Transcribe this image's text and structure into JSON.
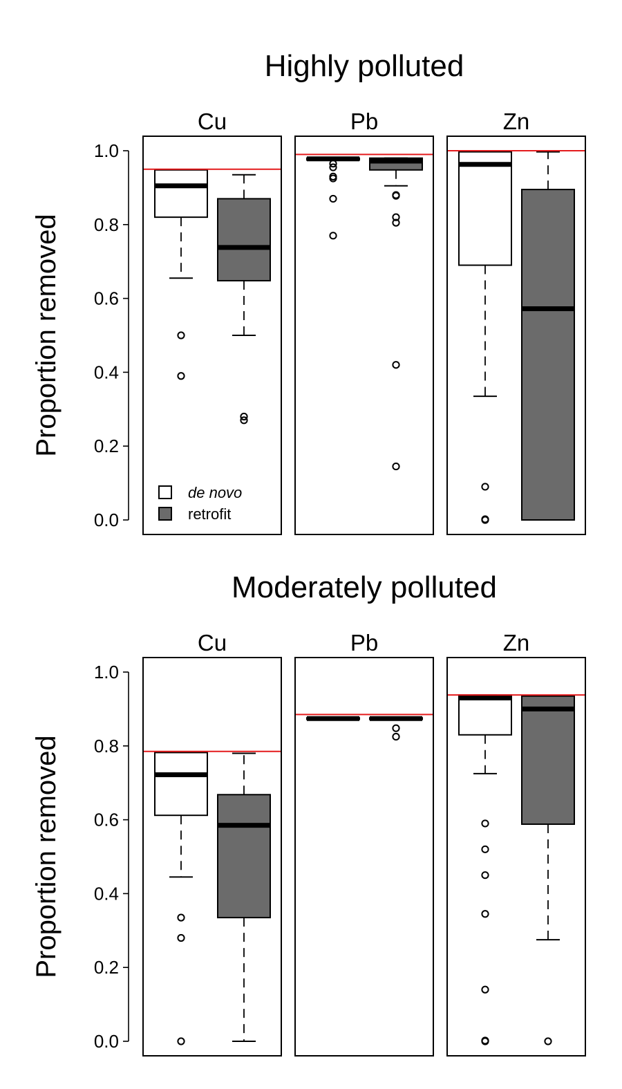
{
  "chart_data": [
    {
      "type": "boxplot",
      "title": "Highly polluted",
      "ylabel": "Proportion removed",
      "ylim": [
        0,
        1
      ],
      "yticks": [
        "0.0",
        "0.2",
        "0.4",
        "0.6",
        "0.8",
        "1.0"
      ],
      "series": [
        {
          "name": "de novo",
          "color": "#ffffff"
        },
        {
          "name": "retrofit",
          "color": "#6b6b6b"
        }
      ],
      "legend_position": "bottom-left",
      "legend": [
        {
          "label": "de novo",
          "italic": true
        },
        {
          "label": "retrofit",
          "italic": false
        }
      ],
      "panels": [
        {
          "label": "Cu",
          "reference_line": 0.95,
          "boxes": [
            {
              "series": "de novo",
              "whisker_low": 0.655,
              "q1": 0.82,
              "median": 0.905,
              "q3": 0.948,
              "whisker_high": 0.948,
              "outliers": [
                0.5,
                0.39
              ]
            },
            {
              "series": "retrofit",
              "whisker_low": 0.5,
              "q1": 0.648,
              "median": 0.738,
              "q3": 0.87,
              "whisker_high": 0.935,
              "outliers": [
                0.28,
                0.27
              ]
            }
          ]
        },
        {
          "label": "Pb",
          "reference_line": 0.99,
          "boxes": [
            {
              "series": "de novo",
              "whisker_low": 0.975,
              "q1": 0.975,
              "median": 0.978,
              "q3": 0.98,
              "whisker_high": 0.98,
              "outliers": [
                0.965,
                0.955,
                0.93,
                0.925,
                0.87,
                0.77
              ]
            },
            {
              "series": "retrofit",
              "whisker_low": 0.905,
              "q1": 0.948,
              "median": 0.972,
              "q3": 0.98,
              "whisker_high": 0.98,
              "outliers": [
                0.88,
                0.878,
                0.82,
                0.805,
                0.42,
                0.145
              ]
            }
          ]
        },
        {
          "label": "Zn",
          "reference_line": 1.0,
          "boxes": [
            {
              "series": "de novo",
              "whisker_low": 0.335,
              "q1": 0.69,
              "median": 0.963,
              "q3": 0.997,
              "whisker_high": 0.997,
              "outliers": [
                0.09,
                0.002,
                0.0
              ]
            },
            {
              "series": "retrofit",
              "whisker_low": 0.0,
              "q1": 0.0,
              "median": 0.572,
              "q3": 0.895,
              "whisker_high": 0.997,
              "outliers": []
            }
          ]
        }
      ]
    },
    {
      "type": "boxplot",
      "title": "Moderately polluted",
      "ylabel": "Proportion removed",
      "ylim": [
        0,
        1
      ],
      "yticks": [
        "0.0",
        "0.2",
        "0.4",
        "0.6",
        "0.8",
        "1.0"
      ],
      "series": [
        {
          "name": "de novo",
          "color": "#ffffff"
        },
        {
          "name": "retrofit",
          "color": "#6b6b6b"
        }
      ],
      "panels": [
        {
          "label": "Cu",
          "reference_line": 0.785,
          "boxes": [
            {
              "series": "de novo",
              "whisker_low": 0.445,
              "q1": 0.612,
              "median": 0.722,
              "q3": 0.782,
              "whisker_high": 0.782,
              "outliers": [
                0.335,
                0.28,
                0.0
              ]
            },
            {
              "series": "retrofit",
              "whisker_low": 0.0,
              "q1": 0.335,
              "median": 0.585,
              "q3": 0.668,
              "whisker_high": 0.78,
              "outliers": []
            }
          ]
        },
        {
          "label": "Pb",
          "reference_line": 0.885,
          "boxes": [
            {
              "series": "de novo",
              "whisker_low": 0.872,
              "q1": 0.872,
              "median": 0.874,
              "q3": 0.876,
              "whisker_high": 0.876,
              "outliers": []
            },
            {
              "series": "retrofit",
              "whisker_low": 0.872,
              "q1": 0.872,
              "median": 0.874,
              "q3": 0.876,
              "whisker_high": 0.876,
              "outliers": [
                0.848,
                0.825
              ]
            }
          ]
        },
        {
          "label": "Zn",
          "reference_line": 0.938,
          "boxes": [
            {
              "series": "de novo",
              "whisker_low": 0.725,
              "q1": 0.83,
              "median": 0.93,
              "q3": 0.938,
              "whisker_high": 0.938,
              "outliers": [
                0.59,
                0.52,
                0.45,
                0.345,
                0.14,
                0.002,
                0.0
              ]
            },
            {
              "series": "retrofit",
              "whisker_low": 0.275,
              "q1": 0.588,
              "median": 0.9,
              "q3": 0.935,
              "whisker_high": 0.935,
              "outliers": [
                0.0
              ]
            }
          ]
        }
      ]
    }
  ]
}
